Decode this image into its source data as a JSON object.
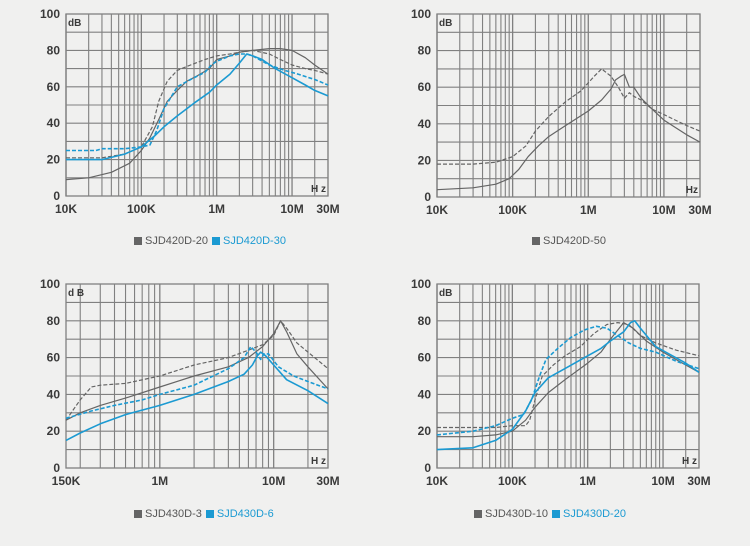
{
  "colors": {
    "gray": "#656565",
    "blue": "#1b9ad2",
    "grid": "#808080",
    "text": "#3a3a3a"
  },
  "chart_data": [
    {
      "type": "line",
      "title": "",
      "xlabel": "H z",
      "ylabel": "dB",
      "xscale": "log",
      "xlim": [
        10000,
        30000000
      ],
      "ylim": [
        0,
        100
      ],
      "yticks": [
        "0",
        "20",
        "40",
        "60",
        "80",
        "100"
      ],
      "xticks": [
        {
          "v": 10000,
          "label": "10K"
        },
        {
          "v": 100000,
          "label": "100K"
        },
        {
          "v": 1000000,
          "label": "1M"
        },
        {
          "v": 10000000,
          "label": "10M"
        },
        {
          "v": 30000000,
          "label": "30M"
        }
      ],
      "legend": [
        {
          "name": "SJD420D-20",
          "color": "gray"
        },
        {
          "name": "SJD420D-30",
          "color": "blue"
        }
      ],
      "legend_position": "bottom",
      "series": [
        {
          "name": "SJD420D-20 common",
          "color": "gray",
          "dash": false,
          "x": [
            10000,
            20000,
            40000,
            70000,
            100000,
            130000,
            170000,
            220000,
            300000,
            400000,
            550000,
            800000,
            1000000,
            1500000,
            2000000,
            3000000,
            5000000,
            7000000,
            10000000,
            15000000,
            20000000,
            30000000
          ],
          "y": [
            9,
            10,
            13,
            18,
            25,
            32,
            42,
            52,
            58,
            63,
            66,
            70,
            75,
            77,
            79,
            80,
            81,
            81,
            80,
            76,
            72,
            67
          ]
        },
        {
          "name": "SJD420D-20 differential",
          "color": "gray",
          "dash": true,
          "x": [
            10000,
            30000,
            60000,
            100000,
            140000,
            170000,
            220000,
            300000,
            450000,
            700000,
            1000000,
            1500000,
            2000000,
            3000000,
            5000000,
            7000000,
            10000000,
            15000000,
            20000000,
            30000000
          ],
          "y": [
            21,
            21,
            23,
            27,
            38,
            52,
            63,
            69,
            72,
            75,
            77,
            78,
            79,
            80,
            78,
            75,
            72,
            70,
            69,
            67
          ]
        },
        {
          "name": "SJD420D-30 common",
          "color": "blue",
          "dash": false,
          "x": [
            10000,
            30000,
            60000,
            100000,
            150000,
            200000,
            300000,
            500000,
            800000,
            1000000,
            1500000,
            2000000,
            2500000,
            3000000,
            4000000,
            6000000,
            10000000,
            15000000,
            20000000,
            30000000
          ],
          "y": [
            20,
            20,
            23,
            27,
            33,
            38,
            44,
            51,
            57,
            61,
            67,
            73,
            78,
            77,
            75,
            70,
            65,
            61,
            58,
            55
          ]
        },
        {
          "name": "SJD420D-30 differential",
          "color": "blue",
          "dash": true,
          "x": [
            10000,
            20000,
            25000,
            30000,
            60000,
            100000,
            130000,
            160000,
            200000,
            300000,
            450000,
            700000,
            850000,
            1000000,
            1500000,
            2000000,
            2500000,
            3000000,
            5000000,
            8000000,
            12000000,
            20000000,
            30000000
          ],
          "y": [
            25,
            25,
            25,
            26,
            26,
            27,
            28,
            36,
            48,
            60,
            64,
            68,
            72,
            74,
            77,
            78,
            78,
            77,
            72,
            69,
            67,
            64,
            61
          ]
        }
      ]
    },
    {
      "type": "line",
      "title": "",
      "xlabel": "Hz",
      "ylabel": "dB",
      "xscale": "log",
      "xlim": [
        10000,
        30000000
      ],
      "ylim": [
        0,
        100
      ],
      "yticks": [
        "0",
        "20",
        "40",
        "60",
        "80",
        "100"
      ],
      "xticks": [
        {
          "v": 10000,
          "label": "10K"
        },
        {
          "v": 100000,
          "label": "100K"
        },
        {
          "v": 1000000,
          "label": "1M"
        },
        {
          "v": 10000000,
          "label": "10M"
        },
        {
          "v": 30000000,
          "label": "30M"
        }
      ],
      "legend": [
        {
          "name": "SJD420D-50",
          "color": "gray"
        }
      ],
      "legend_position": "bottom",
      "series": [
        {
          "name": "SJD420D-50 common",
          "color": "gray",
          "dash": false,
          "x": [
            10000,
            30000,
            60000,
            90000,
            120000,
            160000,
            220000,
            300000,
            500000,
            1000000,
            1500000,
            2000000,
            2300000,
            2700000,
            3000000,
            3500000,
            4000000,
            5000000,
            7000000,
            10000000,
            20000000,
            30000000
          ],
          "y": [
            4,
            5,
            7,
            10,
            15,
            22,
            28,
            33,
            39,
            47,
            53,
            59,
            64,
            66,
            67,
            60,
            60,
            54,
            48,
            42,
            34,
            30
          ]
        },
        {
          "name": "SJD420D-50 differential",
          "color": "gray",
          "dash": true,
          "x": [
            10000,
            30000,
            60000,
            100000,
            150000,
            200000,
            300000,
            500000,
            800000,
            1200000,
            1500000,
            2000000,
            2500000,
            3000000,
            3500000,
            4000000,
            5000000,
            7000000,
            10000000,
            20000000,
            30000000
          ],
          "y": [
            18,
            18,
            19,
            22,
            28,
            36,
            44,
            52,
            58,
            66,
            70,
            66,
            60,
            54,
            57,
            55,
            53,
            48,
            45,
            39,
            36
          ]
        }
      ]
    },
    {
      "type": "line",
      "title": "",
      "xlabel": "H z",
      "ylabel": "d B",
      "xscale": "log",
      "xlim": [
        150000,
        30000000
      ],
      "ylim": [
        0,
        100
      ],
      "yticks": [
        "0",
        "20",
        "40",
        "60",
        "80",
        "100"
      ],
      "xticks": [
        {
          "v": 150000,
          "label": "150K"
        },
        {
          "v": 1000000,
          "label": "1M"
        },
        {
          "v": 10000000,
          "label": "10M"
        },
        {
          "v": 30000000,
          "label": "30M"
        }
      ],
      "legend": [
        {
          "name": "SJD430D-3",
          "color": "gray"
        },
        {
          "name": "SJD430D-6",
          "color": "blue"
        }
      ],
      "legend_position": "bottom",
      "series": [
        {
          "name": "SJD430D-3 common",
          "color": "gray",
          "dash": false,
          "x": [
            150000,
            200000,
            300000,
            500000,
            1000000,
            2000000,
            4000000,
            6000000,
            8000000,
            10000000,
            11500000,
            13000000,
            16000000,
            20000000,
            30000000
          ],
          "y": [
            26,
            30,
            34,
            38,
            44,
            50,
            55,
            60,
            66,
            73,
            80,
            74,
            62,
            55,
            43
          ]
        },
        {
          "name": "SJD430D-3 differential",
          "color": "gray",
          "dash": true,
          "x": [
            150000,
            200000,
            250000,
            300000,
            500000,
            1000000,
            2000000,
            4000000,
            6000000,
            8000000,
            10000000,
            11500000,
            13000000,
            16000000,
            20000000,
            30000000
          ],
          "y": [
            26,
            37,
            44,
            45,
            46,
            50,
            56,
            60,
            64,
            67,
            72,
            80,
            76,
            68,
            63,
            54
          ]
        },
        {
          "name": "SJD430D-6 common",
          "color": "blue",
          "dash": false,
          "x": [
            150000,
            200000,
            300000,
            500000,
            1000000,
            2000000,
            4000000,
            5500000,
            6500000,
            7200000,
            7700000,
            8500000,
            10000000,
            13000000,
            20000000,
            30000000
          ],
          "y": [
            15,
            19,
            24,
            29,
            34,
            40,
            47,
            51,
            56,
            61,
            63,
            61,
            56,
            48,
            42,
            35
          ]
        },
        {
          "name": "SJD430D-6 differential",
          "color": "blue",
          "dash": true,
          "x": [
            150000,
            250000,
            400000,
            700000,
            1000000,
            2000000,
            4000000,
            5500000,
            6300000,
            7000000,
            7700000,
            8200000,
            9000000,
            11000000,
            15000000,
            20000000,
            30000000
          ],
          "y": [
            27,
            31,
            34,
            37,
            40,
            45,
            54,
            60,
            66,
            63,
            59,
            62,
            62,
            55,
            50,
            47,
            43
          ]
        }
      ]
    },
    {
      "type": "line",
      "title": "",
      "xlabel": "H z",
      "ylabel": "dB",
      "xscale": "log",
      "xlim": [
        10000,
        30000000
      ],
      "ylim": [
        0,
        100
      ],
      "yticks": [
        "0",
        "20",
        "40",
        "60",
        "80",
        "100"
      ],
      "xticks": [
        {
          "v": 10000,
          "label": "10K"
        },
        {
          "v": 100000,
          "label": "100K"
        },
        {
          "v": 1000000,
          "label": "1M"
        },
        {
          "v": 10000000,
          "label": "10M"
        },
        {
          "v": 30000000,
          "label": "30M"
        }
      ],
      "legend": [
        {
          "name": "SJD430D-10",
          "color": "gray"
        },
        {
          "name": "SJD430D-20",
          "color": "blue"
        }
      ],
      "legend_position": "bottom",
      "series": [
        {
          "name": "SJD430D-10 common",
          "color": "gray",
          "dash": false,
          "x": [
            10000,
            30000,
            60000,
            100000,
            150000,
            200000,
            300000,
            500000,
            1000000,
            1500000,
            2000000,
            3000000,
            4000000,
            6000000,
            10000000,
            20000000,
            30000000
          ],
          "y": [
            17,
            17,
            18,
            20,
            26,
            33,
            41,
            48,
            57,
            63,
            70,
            79,
            76,
            69,
            63,
            56,
            52
          ]
        },
        {
          "name": "SJD430D-10 differential",
          "color": "gray",
          "dash": true,
          "x": [
            10000,
            30000,
            60000,
            100000,
            150000,
            170000,
            200000,
            250000,
            350000,
            500000,
            800000,
            1200000,
            1800000,
            2500000,
            3500000,
            5000000,
            8000000,
            15000000,
            30000000
          ],
          "y": [
            22,
            22,
            22,
            23,
            23,
            26,
            37,
            50,
            56,
            61,
            66,
            73,
            78,
            79,
            78,
            72,
            68,
            64,
            61
          ]
        },
        {
          "name": "SJD430D-20 common",
          "color": "blue",
          "dash": false,
          "x": [
            10000,
            30000,
            60000,
            100000,
            150000,
            200000,
            300000,
            500000,
            1000000,
            1500000,
            2000000,
            3000000,
            3700000,
            4200000,
            5000000,
            8000000,
            12000000,
            20000000,
            30000000
          ],
          "y": [
            10,
            11,
            15,
            21,
            31,
            41,
            49,
            54,
            61,
            65,
            69,
            74,
            79,
            80,
            76,
            66,
            62,
            57,
            52
          ]
        },
        {
          "name": "SJD430D-20 differential",
          "color": "blue",
          "dash": true,
          "x": [
            10000,
            30000,
            60000,
            100000,
            140000,
            180000,
            230000,
            280000,
            400000,
            600000,
            900000,
            1300000,
            1800000,
            2500000,
            3500000,
            5000000,
            8000000,
            15000000,
            30000000
          ],
          "y": [
            18,
            20,
            23,
            27,
            29,
            37,
            50,
            59,
            65,
            71,
            75,
            77,
            76,
            72,
            68,
            65,
            63,
            58,
            54
          ]
        }
      ]
    }
  ]
}
